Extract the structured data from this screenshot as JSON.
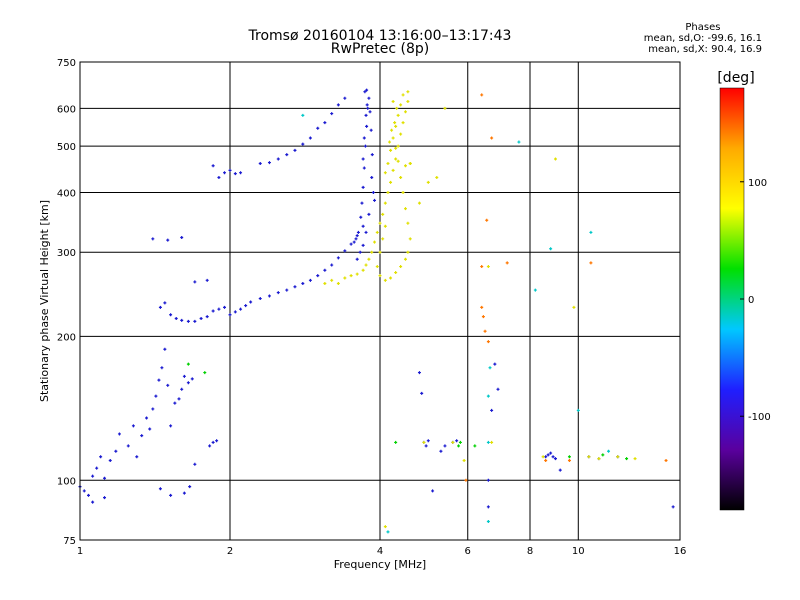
{
  "chart_data": {
    "type": "scatter",
    "title": "Tromsø 20160104 13:16:00–13:17:43",
    "subtitle": "RwPretec (8p)",
    "xlabel": "Frequency [MHz]",
    "ylabel": "Stationary phase Virtual Height [km]",
    "x_scale": "log",
    "y_scale": "log",
    "xlim": [
      1,
      16
    ],
    "ylim": [
      75,
      750
    ],
    "x_ticks": [
      1,
      2,
      4,
      6,
      8,
      10,
      16
    ],
    "y_ticks": [
      75,
      100,
      200,
      300,
      400,
      500,
      600,
      750
    ],
    "grid": true,
    "stats": {
      "header": "Phases",
      "line_o": "mean, sd,O: -99.6, 16.1",
      "line_x": "mean, sd,X: 90.4, 16.9"
    },
    "colorbar": {
      "label": "[deg]",
      "range": [
        -180,
        180
      ],
      "ticks": [
        -100,
        0,
        100
      ],
      "colormap": [
        "#000000",
        "#5a009e",
        "#1f1fff",
        "#00c8ff",
        "#00e000",
        "#ffff00",
        "#ffaa00",
        "#ff0000"
      ]
    },
    "series": [
      {
        "color": "#1a1ad0",
        "phase_deg": -100,
        "points": [
          [
            1.0,
            97
          ],
          [
            1.02,
            95
          ],
          [
            1.04,
            93
          ],
          [
            1.06,
            102
          ],
          [
            1.08,
            106
          ],
          [
            1.1,
            112
          ],
          [
            1.12,
            101
          ],
          [
            1.15,
            110
          ],
          [
            1.18,
            115
          ],
          [
            1.2,
            125
          ],
          [
            1.25,
            118
          ],
          [
            1.28,
            130
          ],
          [
            1.3,
            112
          ],
          [
            1.33,
            124
          ],
          [
            1.36,
            135
          ],
          [
            1.38,
            128
          ],
          [
            1.4,
            141
          ],
          [
            1.42,
            150
          ],
          [
            1.44,
            162
          ],
          [
            1.46,
            172
          ],
          [
            1.48,
            188
          ],
          [
            1.5,
            158
          ],
          [
            1.52,
            130
          ],
          [
            1.55,
            145
          ],
          [
            1.58,
            148
          ],
          [
            1.6,
            155
          ],
          [
            1.62,
            165
          ],
          [
            1.65,
            160
          ],
          [
            1.68,
            163
          ],
          [
            1.7,
            108
          ],
          [
            1.45,
            96
          ],
          [
            1.52,
            93
          ],
          [
            1.62,
            94
          ],
          [
            1.66,
            97
          ],
          [
            1.06,
            90
          ],
          [
            1.12,
            92
          ],
          [
            1.82,
            118
          ],
          [
            1.85,
            120
          ],
          [
            1.88,
            121
          ],
          [
            1.45,
            230
          ],
          [
            1.48,
            235
          ],
          [
            1.52,
            222
          ],
          [
            1.56,
            218
          ],
          [
            1.6,
            216
          ],
          [
            1.65,
            215
          ],
          [
            1.7,
            215
          ],
          [
            1.75,
            218
          ],
          [
            1.8,
            220
          ],
          [
            1.85,
            226
          ],
          [
            1.9,
            228
          ],
          [
            1.95,
            230
          ],
          [
            2.0,
            222
          ],
          [
            2.05,
            225
          ],
          [
            2.1,
            228
          ],
          [
            2.15,
            232
          ],
          [
            2.2,
            236
          ],
          [
            2.3,
            240
          ],
          [
            2.4,
            243
          ],
          [
            2.5,
            247
          ],
          [
            2.6,
            250
          ],
          [
            2.7,
            254
          ],
          [
            2.8,
            258
          ],
          [
            2.9,
            262
          ],
          [
            3.0,
            268
          ],
          [
            3.1,
            275
          ],
          [
            3.2,
            282
          ],
          [
            3.3,
            292
          ],
          [
            3.4,
            302
          ],
          [
            3.5,
            312
          ],
          [
            3.6,
            325
          ],
          [
            3.7,
            340
          ],
          [
            3.8,
            360
          ],
          [
            3.9,
            385
          ],
          [
            3.7,
            410
          ],
          [
            3.72,
            450
          ],
          [
            3.74,
            500
          ],
          [
            3.76,
            550
          ],
          [
            3.78,
            600
          ],
          [
            3.8,
            630
          ],
          [
            3.68,
            380
          ],
          [
            3.66,
            355
          ],
          [
            3.62,
            330
          ],
          [
            3.58,
            320
          ],
          [
            3.55,
            315
          ],
          [
            3.6,
            290
          ],
          [
            3.65,
            300
          ],
          [
            3.7,
            310
          ],
          [
            3.75,
            330
          ],
          [
            3.72,
            520
          ],
          [
            3.75,
            580
          ],
          [
            3.7,
            470
          ],
          [
            3.77,
            610
          ],
          [
            3.82,
            590
          ],
          [
            3.84,
            540
          ],
          [
            3.86,
            480
          ],
          [
            3.85,
            430
          ],
          [
            3.88,
            400
          ],
          [
            3.73,
            650
          ],
          [
            3.76,
            655
          ],
          [
            1.4,
            320
          ],
          [
            1.5,
            318
          ],
          [
            1.6,
            322
          ],
          [
            1.7,
            260
          ],
          [
            1.8,
            262
          ],
          [
            1.9,
            430
          ],
          [
            1.95,
            440
          ],
          [
            2.0,
            445
          ],
          [
            2.05,
            438
          ],
          [
            2.1,
            440
          ],
          [
            2.3,
            460
          ],
          [
            2.4,
            462
          ],
          [
            2.5,
            470
          ],
          [
            2.6,
            480
          ],
          [
            2.7,
            490
          ],
          [
            2.8,
            505
          ],
          [
            2.9,
            520
          ],
          [
            3.0,
            545
          ],
          [
            3.1,
            560
          ],
          [
            3.2,
            585
          ],
          [
            3.3,
            610
          ],
          [
            3.4,
            630
          ],
          [
            1.85,
            455
          ],
          [
            4.8,
            168
          ],
          [
            4.85,
            152
          ],
          [
            4.9,
            120
          ],
          [
            4.95,
            118
          ],
          [
            5.0,
            121
          ],
          [
            5.3,
            115
          ],
          [
            5.4,
            118
          ],
          [
            5.6,
            120
          ],
          [
            5.7,
            121
          ],
          [
            6.6,
            100
          ],
          [
            6.7,
            140
          ],
          [
            6.8,
            175
          ],
          [
            6.9,
            155
          ],
          [
            8.6,
            112
          ],
          [
            8.7,
            113
          ],
          [
            8.8,
            114
          ],
          [
            8.9,
            112
          ],
          [
            9.0,
            111
          ],
          [
            9.2,
            105
          ],
          [
            10.5,
            112
          ],
          [
            11.0,
            111
          ],
          [
            12.0,
            112
          ],
          [
            15.5,
            88
          ],
          [
            5.1,
            95
          ],
          [
            6.6,
            88
          ]
        ]
      },
      {
        "color": "#e0e000",
        "phase_deg": 100,
        "points": [
          [
            3.1,
            258
          ],
          [
            3.2,
            262
          ],
          [
            3.3,
            258
          ],
          [
            3.4,
            265
          ],
          [
            3.5,
            268
          ],
          [
            3.6,
            270
          ],
          [
            3.7,
            275
          ],
          [
            3.75,
            282
          ],
          [
            3.8,
            290
          ],
          [
            3.85,
            300
          ],
          [
            3.9,
            315
          ],
          [
            3.95,
            330
          ],
          [
            4.0,
            345
          ],
          [
            4.05,
            360
          ],
          [
            4.1,
            380
          ],
          [
            4.15,
            400
          ],
          [
            4.2,
            420
          ],
          [
            4.25,
            445
          ],
          [
            4.3,
            470
          ],
          [
            4.35,
            500
          ],
          [
            4.4,
            530
          ],
          [
            4.45,
            560
          ],
          [
            4.5,
            590
          ],
          [
            4.55,
            620
          ],
          [
            4.55,
            650
          ],
          [
            4.45,
            640
          ],
          [
            4.4,
            610
          ],
          [
            4.35,
            580
          ],
          [
            4.3,
            550
          ],
          [
            4.25,
            520
          ],
          [
            4.3,
            495
          ],
          [
            4.35,
            465
          ],
          [
            4.4,
            430
          ],
          [
            4.45,
            400
          ],
          [
            4.5,
            370
          ],
          [
            4.55,
            345
          ],
          [
            4.6,
            320
          ],
          [
            4.55,
            300
          ],
          [
            4.5,
            290
          ],
          [
            4.4,
            280
          ],
          [
            4.3,
            272
          ],
          [
            4.2,
            265
          ],
          [
            4.1,
            262
          ],
          [
            4.0,
            268
          ],
          [
            3.95,
            280
          ],
          [
            4.0,
            300
          ],
          [
            4.05,
            320
          ],
          [
            4.1,
            340
          ],
          [
            4.1,
            440
          ],
          [
            4.15,
            460
          ],
          [
            4.2,
            490
          ],
          [
            4.18,
            510
          ],
          [
            4.22,
            540
          ],
          [
            4.28,
            560
          ],
          [
            4.32,
            600
          ],
          [
            4.25,
            620
          ],
          [
            4.5,
            455
          ],
          [
            4.6,
            460
          ],
          [
            5.4,
            600
          ],
          [
            5.2,
            430
          ],
          [
            4.8,
            380
          ],
          [
            4.6,
            460
          ],
          [
            5.0,
            420
          ],
          [
            4.9,
            120
          ],
          [
            5.6,
            120
          ],
          [
            6.7,
            120
          ],
          [
            8.5,
            112
          ],
          [
            9.0,
            470
          ],
          [
            9.8,
            230
          ],
          [
            10.5,
            112
          ],
          [
            11.0,
            111
          ],
          [
            12.0,
            112
          ],
          [
            13.0,
            111
          ],
          [
            4.1,
            80
          ],
          [
            5.9,
            110
          ],
          [
            6.6,
            280
          ]
        ]
      },
      {
        "color": "#ff7700",
        "phase_deg": 150,
        "points": [
          [
            6.4,
            640
          ],
          [
            6.55,
            350
          ],
          [
            6.4,
            230
          ],
          [
            6.45,
            220
          ],
          [
            6.5,
            205
          ],
          [
            6.6,
            195
          ],
          [
            7.2,
            285
          ],
          [
            6.4,
            280
          ],
          [
            8.6,
            110
          ],
          [
            9.6,
            110
          ],
          [
            10.6,
            285
          ],
          [
            15.0,
            110
          ],
          [
            6.7,
            520
          ],
          [
            5.95,
            100
          ]
        ]
      },
      {
        "color": "#00c8c8",
        "phase_deg": 10,
        "points": [
          [
            7.6,
            510
          ],
          [
            6.6,
            150
          ],
          [
            6.65,
            172
          ],
          [
            6.6,
            120
          ],
          [
            8.2,
            250
          ],
          [
            10.0,
            140
          ],
          [
            10.6,
            330
          ],
          [
            11.5,
            115
          ],
          [
            4.15,
            78
          ],
          [
            6.6,
            82
          ],
          [
            8.8,
            305
          ],
          [
            2.8,
            580
          ]
        ]
      },
      {
        "color": "#00d000",
        "phase_deg": -20,
        "points": [
          [
            5.8,
            120
          ],
          [
            5.75,
            118
          ],
          [
            11.2,
            113
          ],
          [
            12.5,
            111
          ],
          [
            9.6,
            112
          ],
          [
            6.2,
            118
          ],
          [
            1.65,
            175
          ],
          [
            1.78,
            168
          ],
          [
            4.3,
            120
          ]
        ]
      }
    ]
  }
}
